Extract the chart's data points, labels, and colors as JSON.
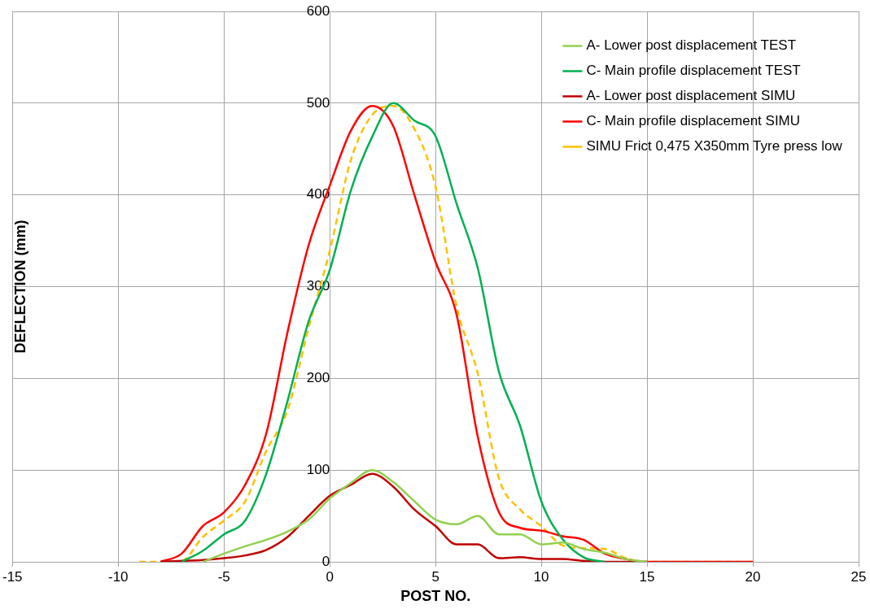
{
  "chart_data": {
    "type": "line",
    "xlabel": "POST NO.",
    "ylabel": "DEFLECTION (mm)",
    "xlim": [
      -15,
      25
    ],
    "xticks": [
      -15,
      -10,
      -5,
      0,
      5,
      10,
      15,
      20,
      25
    ],
    "ylim": [
      0,
      600
    ],
    "yticks": [
      0,
      100,
      200,
      300,
      400,
      500,
      600
    ],
    "grid": true,
    "legend": "top right",
    "marker": "none",
    "series": [
      {
        "name": "A- Lower post displacement TEST",
        "color": "#92d050",
        "line_style": "solid",
        "x": [
          -6,
          -5,
          -4,
          -3,
          -2,
          -1,
          0,
          1,
          2,
          3,
          4,
          5,
          6,
          7,
          8,
          9,
          10,
          11,
          12,
          13,
          14,
          15
        ],
        "values": [
          0,
          9,
          17,
          24,
          33,
          46,
          69,
          86,
          100,
          87,
          66,
          46,
          41,
          50,
          30,
          30,
          19,
          21,
          14,
          10,
          3,
          0
        ]
      },
      {
        "name": "C- Main profile displacement TEST",
        "color": "#00b050",
        "line_style": "solid",
        "x": [
          -7,
          -6,
          -5,
          -4,
          -3,
          -2,
          -1,
          0,
          1,
          2,
          3,
          4,
          5,
          6,
          7,
          8,
          9,
          10,
          11,
          12,
          13
        ],
        "values": [
          0,
          12,
          30,
          45,
          96,
          175,
          262,
          318,
          405,
          463,
          500,
          481,
          464,
          390,
          320,
          207,
          148,
          66,
          25,
          5,
          0
        ]
      },
      {
        "name": "A- Lower post displacement SIMU",
        "color": "#c00000",
        "line_style": "solid",
        "x": [
          -8,
          -7,
          -6,
          -5,
          -4,
          -3,
          -2,
          -1,
          0,
          1,
          2,
          3,
          4,
          5,
          6,
          7,
          8,
          9,
          10,
          11,
          12,
          13,
          14,
          15
        ],
        "values": [
          0,
          1,
          2,
          4,
          7,
          13,
          27,
          50,
          72,
          84,
          96,
          82,
          57,
          39,
          19,
          19,
          4,
          5,
          3,
          3,
          1,
          0,
          0,
          0
        ]
      },
      {
        "name": "C- Main profile displacement SIMU",
        "color": "#ff0000",
        "line_style": "solid",
        "x": [
          -8,
          -7,
          -6,
          -5,
          -4,
          -3,
          -2,
          -1,
          0,
          1,
          2,
          3,
          4,
          5,
          6,
          7,
          8,
          9,
          10,
          11,
          12,
          13,
          14,
          15,
          20
        ],
        "values": [
          0,
          9,
          39,
          54,
          84,
          140,
          250,
          345,
          410,
          470,
          497,
          475,
          400,
          327,
          269,
          136,
          54,
          37,
          34,
          28,
          24,
          9,
          3,
          0,
          0
        ]
      },
      {
        "name": "SIMU Frict 0,475 X350mm Tyre press low",
        "color": "#ffc000",
        "line_style": "dashed",
        "x": [
          -9,
          -8,
          -7,
          -6,
          -5,
          -4,
          -3,
          -2,
          -1,
          0,
          1,
          2,
          3,
          4,
          5,
          6,
          7,
          8,
          9,
          10,
          11,
          12,
          13,
          14,
          15,
          20
        ],
        "values": [
          0,
          0,
          1,
          27,
          45,
          66,
          121,
          165,
          255,
          339,
          438,
          487,
          497,
          472,
          409,
          278,
          205,
          91,
          57,
          39,
          18,
          15,
          14,
          4,
          0,
          0
        ]
      }
    ]
  }
}
